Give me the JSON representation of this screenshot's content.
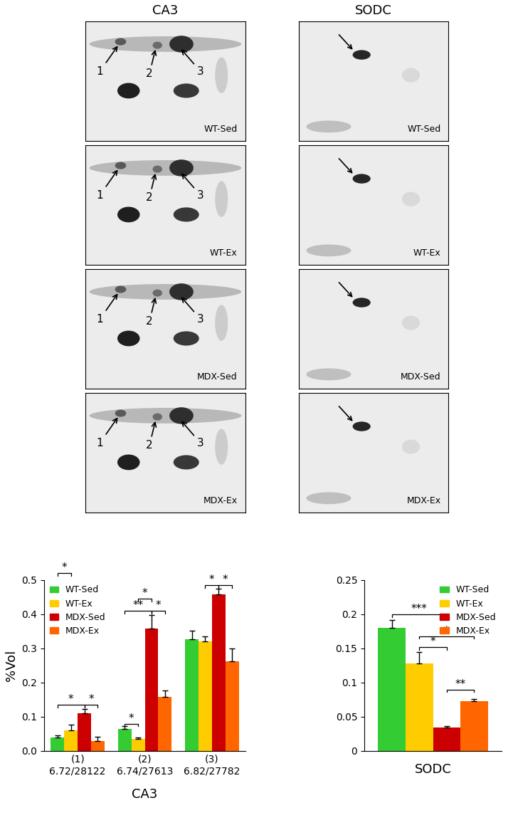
{
  "gels": [
    {
      "title": "CA3",
      "panels": [
        {
          "label": "WT-Sed",
          "arrows": [
            "1",
            "2",
            "3"
          ]
        },
        {
          "label": "WT-Ex",
          "arrows": [
            "1",
            "2",
            "3"
          ]
        },
        {
          "label": "MDX-Sed",
          "arrows": [
            "1",
            "2",
            "3"
          ]
        },
        {
          "label": "MDX-Ex",
          "arrows": [
            "1",
            "2",
            "3"
          ]
        }
      ]
    },
    {
      "title": "SODC",
      "panels": [
        {
          "label": "WT-Sed"
        },
        {
          "label": "WT-Ex"
        },
        {
          "label": "MDX-Sed"
        },
        {
          "label": "MDX-Ex"
        }
      ]
    }
  ],
  "chart_data": [
    {
      "type": "bar",
      "x_label": "CA3",
      "y_label": "%Vol",
      "categories": [
        "(1)\n6.72/28122",
        "(2)\n6.74/27613",
        "(3)\n6.82/27782"
      ],
      "series": [
        {
          "name": "WT-Sed",
          "color": "#33cc33",
          "values": [
            0.04,
            0.065,
            0.328
          ],
          "errors": [
            0.005,
            0.007,
            0.025
          ]
        },
        {
          "name": "WT-Ex",
          "color": "#ffcc00",
          "values": [
            0.06,
            0.035,
            0.32
          ],
          "errors": [
            0.018,
            0.004,
            0.015
          ]
        },
        {
          "name": "MDX-Sed",
          "color": "#cc0000",
          "values": [
            0.11,
            0.358,
            0.458
          ],
          "errors": [
            0.013,
            0.04,
            0.017
          ]
        },
        {
          "name": "MDX-Ex",
          "color": "#ff6600",
          "values": [
            0.03,
            0.158,
            0.262
          ],
          "errors": [
            0.012,
            0.02,
            0.038
          ]
        }
      ],
      "significance": [
        {
          "category": 0,
          "from": "WT-Sed",
          "to": "WT-Ex",
          "y": 0.52,
          "label": "*"
        },
        {
          "category": 0,
          "from": "WT-Sed",
          "to": "MDX-Sed",
          "y": 0.135,
          "label": "*"
        },
        {
          "category": 0,
          "from": "MDX-Sed",
          "to": "MDX-Ex",
          "y": 0.135,
          "label": "*"
        },
        {
          "category": 1,
          "from": "WT-Sed",
          "to": "WT-Ex",
          "y": 0.08,
          "label": "*"
        },
        {
          "category": 1,
          "from": "WT-Sed",
          "to": "MDX-Sed",
          "y": 0.41,
          "label": "**"
        },
        {
          "category": 1,
          "from": "WT-Ex",
          "to": "MDX-Sed",
          "y": 0.445,
          "label": "*"
        },
        {
          "category": 1,
          "from": "MDX-Sed",
          "to": "MDX-Ex",
          "y": 0.41,
          "label": "*"
        },
        {
          "category": 2,
          "from": "WT-Ex",
          "to": "MDX-Sed",
          "y": 0.485,
          "label": "*"
        },
        {
          "category": 2,
          "from": "MDX-Sed",
          "to": "MDX-Ex",
          "y": 0.485,
          "label": "*"
        }
      ],
      "ylim": [
        0,
        0.5
      ],
      "yticks": [
        0.0,
        0.1,
        0.2,
        0.3,
        0.4,
        0.5
      ],
      "legend": "upper left"
    },
    {
      "type": "bar",
      "x_label": "SODC",
      "categories": [
        null
      ],
      "series": [
        {
          "name": "WT-Sed",
          "color": "#33cc33",
          "values": [
            0.18
          ],
          "errors": [
            0.012
          ]
        },
        {
          "name": "WT-Ex",
          "color": "#ffcc00",
          "values": [
            0.128
          ],
          "errors": [
            0.017
          ]
        },
        {
          "name": "MDX-Sed",
          "color": "#cc0000",
          "values": [
            0.034
          ],
          "errors": [
            0.002
          ]
        },
        {
          "name": "MDX-Ex",
          "color": "#ff6600",
          "values": [
            0.073
          ],
          "errors": [
            0.003
          ]
        }
      ],
      "significance": [
        {
          "category": 0,
          "from": "WT-Sed",
          "to": "MDX-Sed",
          "y": 0.2,
          "label": "***"
        },
        {
          "category": 0,
          "from": "WT-Ex",
          "to": "MDX-Sed",
          "y": 0.152,
          "label": "*"
        },
        {
          "category": 0,
          "from": "WT-Ex",
          "to": "MDX-Ex",
          "y": 0.168,
          "label": "*"
        },
        {
          "category": 0,
          "from": "MDX-Sed",
          "to": "MDX-Ex",
          "y": 0.09,
          "label": "**"
        }
      ],
      "ylim": [
        0,
        0.25
      ],
      "yticks": [
        0,
        0.05,
        0.1,
        0.15,
        0.2,
        0.25
      ],
      "legend": "upper right"
    }
  ]
}
